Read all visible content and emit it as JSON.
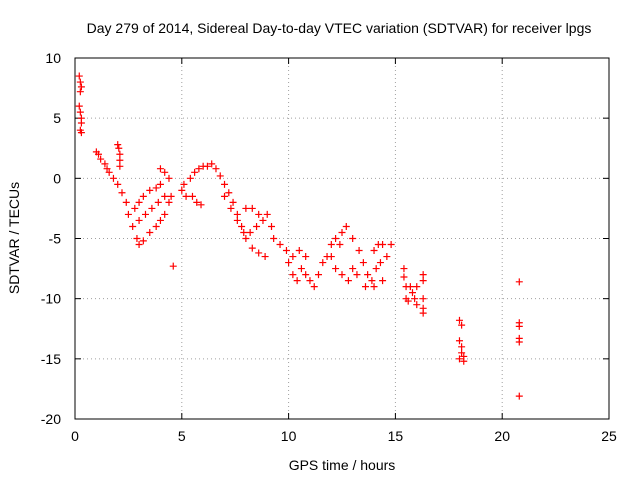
{
  "chart_data": {
    "type": "scatter",
    "title": "Day 279 of 2014, Sidereal Day-to-day VTEC variation (SDTVAR) for receiver lpgs",
    "xlabel": "GPS time / hours",
    "ylabel": "SDTVAR / TECUs",
    "xlim": [
      0,
      25
    ],
    "ylim": [
      -20,
      10
    ],
    "xticks": [
      0,
      5,
      10,
      15,
      20,
      25
    ],
    "yticks": [
      -20,
      -15,
      -10,
      -5,
      0,
      5,
      10
    ],
    "grid": true,
    "marker": "+",
    "color": "#ff0000",
    "series": [
      {
        "name": "SDTVAR",
        "points": [
          [
            0.2,
            8.5
          ],
          [
            0.25,
            8.0
          ],
          [
            0.3,
            7.6
          ],
          [
            0.25,
            7.2
          ],
          [
            0.2,
            6.0
          ],
          [
            0.25,
            5.5
          ],
          [
            0.3,
            5.0
          ],
          [
            0.3,
            4.6
          ],
          [
            0.25,
            4.0
          ],
          [
            0.3,
            3.8
          ],
          [
            1.0,
            2.2
          ],
          [
            1.1,
            2.0
          ],
          [
            1.2,
            1.6
          ],
          [
            1.4,
            1.2
          ],
          [
            1.5,
            0.8
          ],
          [
            1.6,
            0.5
          ],
          [
            1.8,
            0.0
          ],
          [
            2.0,
            2.8
          ],
          [
            2.05,
            2.5
          ],
          [
            2.1,
            2.0
          ],
          [
            2.1,
            1.5
          ],
          [
            2.1,
            1.0
          ],
          [
            2.0,
            -0.5
          ],
          [
            2.2,
            -1.2
          ],
          [
            2.4,
            -2.0
          ],
          [
            2.5,
            -3.0
          ],
          [
            2.7,
            -4.0
          ],
          [
            2.9,
            -5.0
          ],
          [
            3.0,
            -5.5
          ],
          [
            3.2,
            -5.2
          ],
          [
            3.5,
            -4.5
          ],
          [
            3.8,
            -4.0
          ],
          [
            4.0,
            -3.5
          ],
          [
            4.2,
            -3.0
          ],
          [
            4.4,
            -2.0
          ],
          [
            4.5,
            -1.5
          ],
          [
            2.8,
            -2.5
          ],
          [
            3.0,
            -2.0
          ],
          [
            3.2,
            -1.5
          ],
          [
            3.5,
            -1.0
          ],
          [
            3.8,
            -0.8
          ],
          [
            4.0,
            -0.5
          ],
          [
            3.0,
            -3.5
          ],
          [
            3.3,
            -3.0
          ],
          [
            3.6,
            -2.5
          ],
          [
            3.9,
            -2.0
          ],
          [
            4.2,
            -1.5
          ],
          [
            4.0,
            0.8
          ],
          [
            4.2,
            0.5
          ],
          [
            4.4,
            0.0
          ],
          [
            4.6,
            -7.3
          ],
          [
            5.0,
            -1.0
          ],
          [
            5.1,
            -0.5
          ],
          [
            5.2,
            -1.5
          ],
          [
            5.4,
            0.0
          ],
          [
            5.6,
            0.5
          ],
          [
            5.8,
            0.8
          ],
          [
            6.0,
            1.0
          ],
          [
            6.2,
            1.0
          ],
          [
            6.4,
            1.2
          ],
          [
            6.6,
            0.8
          ],
          [
            6.8,
            0.2
          ],
          [
            7.0,
            -0.5
          ],
          [
            7.2,
            -1.2
          ],
          [
            7.4,
            -2.0
          ],
          [
            7.6,
            -3.0
          ],
          [
            7.8,
            -4.0
          ],
          [
            8.0,
            -5.0
          ],
          [
            8.3,
            -5.8
          ],
          [
            8.6,
            -6.2
          ],
          [
            8.9,
            -6.5
          ],
          [
            5.5,
            -1.5
          ],
          [
            5.7,
            -2.0
          ],
          [
            5.9,
            -2.2
          ],
          [
            7.0,
            -1.5
          ],
          [
            7.3,
            -2.5
          ],
          [
            7.6,
            -3.5
          ],
          [
            7.9,
            -4.5
          ],
          [
            8.2,
            -4.5
          ],
          [
            8.5,
            -4.0
          ],
          [
            8.8,
            -3.5
          ],
          [
            9.0,
            -3.0
          ],
          [
            9.2,
            -4.0
          ],
          [
            8.0,
            -2.5
          ],
          [
            8.3,
            -2.5
          ],
          [
            8.6,
            -3.0
          ],
          [
            9.3,
            -5.0
          ],
          [
            9.6,
            -5.5
          ],
          [
            9.9,
            -6.0
          ],
          [
            10.2,
            -6.5
          ],
          [
            10.5,
            -6.0
          ],
          [
            10.8,
            -6.5
          ],
          [
            10.0,
            -7.0
          ],
          [
            10.2,
            -8.0
          ],
          [
            10.4,
            -8.5
          ],
          [
            10.6,
            -7.5
          ],
          [
            10.8,
            -8.0
          ],
          [
            11.0,
            -8.5
          ],
          [
            11.2,
            -9.0
          ],
          [
            11.4,
            -8.0
          ],
          [
            11.6,
            -7.0
          ],
          [
            11.8,
            -6.5
          ],
          [
            12.0,
            -5.5
          ],
          [
            12.2,
            -5.0
          ],
          [
            12.4,
            -5.5
          ],
          [
            12.0,
            -6.5
          ],
          [
            12.2,
            -7.5
          ],
          [
            12.5,
            -8.0
          ],
          [
            12.8,
            -8.5
          ],
          [
            13.0,
            -7.5
          ],
          [
            13.2,
            -8.0
          ],
          [
            12.5,
            -4.5
          ],
          [
            12.7,
            -4.0
          ],
          [
            13.0,
            -5.0
          ],
          [
            13.3,
            -6.0
          ],
          [
            13.5,
            -7.0
          ],
          [
            13.7,
            -8.0
          ],
          [
            13.9,
            -8.5
          ],
          [
            14.1,
            -7.5
          ],
          [
            14.3,
            -7.0
          ],
          [
            14.0,
            -6.0
          ],
          [
            14.2,
            -5.5
          ],
          [
            14.4,
            -5.5
          ],
          [
            14.6,
            -6.5
          ],
          [
            14.8,
            -5.5
          ],
          [
            13.6,
            -9.0
          ],
          [
            14.0,
            -9.0
          ],
          [
            14.4,
            -8.5
          ],
          [
            15.4,
            -7.5
          ],
          [
            15.4,
            -8.2
          ],
          [
            15.5,
            -9.0
          ],
          [
            15.5,
            -10.0
          ],
          [
            15.6,
            -10.2
          ],
          [
            15.7,
            -9.0
          ],
          [
            15.8,
            -9.5
          ],
          [
            15.9,
            -10.0
          ],
          [
            16.0,
            -9.0
          ],
          [
            16.0,
            -10.5
          ],
          [
            16.3,
            -8.0
          ],
          [
            16.3,
            -8.5
          ],
          [
            16.3,
            -10.0
          ],
          [
            16.3,
            -10.8
          ],
          [
            16.3,
            -11.2
          ],
          [
            18.0,
            -11.8
          ],
          [
            18.1,
            -12.2
          ],
          [
            18.0,
            -13.5
          ],
          [
            18.1,
            -14.0
          ],
          [
            18.1,
            -14.5
          ],
          [
            18.0,
            -15.0
          ],
          [
            18.2,
            -15.2
          ],
          [
            18.2,
            -14.8
          ],
          [
            20.8,
            -8.6
          ],
          [
            20.8,
            -12.0
          ],
          [
            20.8,
            -12.3
          ],
          [
            20.8,
            -13.3
          ],
          [
            20.8,
            -13.6
          ],
          [
            20.8,
            -18.1
          ]
        ]
      }
    ]
  }
}
